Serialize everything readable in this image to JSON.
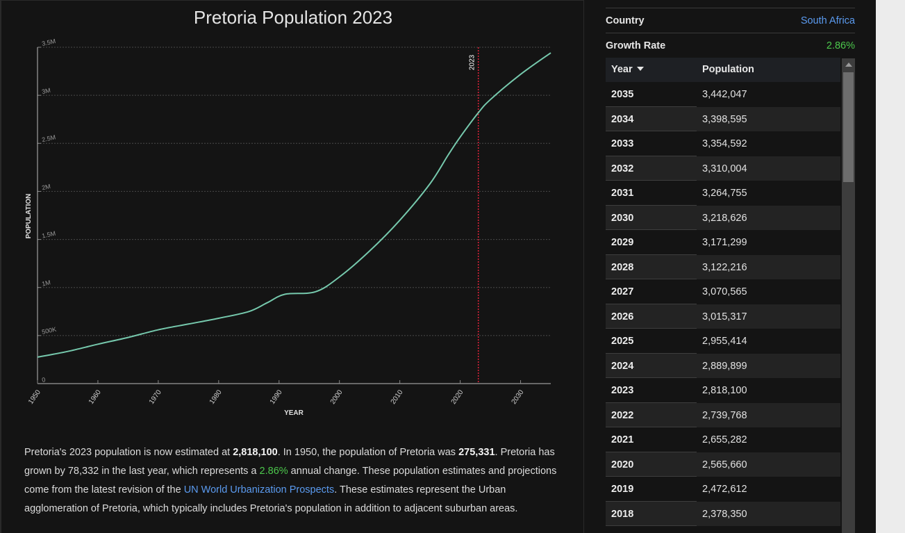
{
  "chart_title": "Pretoria Population 2023",
  "chart_data": {
    "type": "line",
    "title": "Pretoria Population 2023",
    "xlabel": "YEAR",
    "ylabel": "POPULATION",
    "xlim": [
      1950,
      2035
    ],
    "ylim": [
      0,
      3500000
    ],
    "x_ticks": [
      "1950",
      "1960",
      "1970",
      "1980",
      "1990",
      "2000",
      "2010",
      "2020",
      "2030"
    ],
    "y_ticks": [
      "0",
      "500K",
      "1M",
      "1.5M",
      "2M",
      "2.5M",
      "3M",
      "3.5M"
    ],
    "marker": {
      "year": 2023,
      "label": "2023"
    },
    "grid": true,
    "series": [
      {
        "x": [
          1950,
          1955,
          1960,
          1965,
          1970,
          1975,
          1980,
          1985,
          1988,
          1991,
          1996,
          2000,
          2005,
          2010,
          2015,
          2018,
          2020,
          2023,
          2025,
          2030,
          2035
        ],
        "y": [
          275331,
          335000,
          410000,
          480000,
          560000,
          620000,
          680000,
          750000,
          840000,
          930000,
          955000,
          1110000,
          1380000,
          1700000,
          2080000,
          2378350,
          2565660,
          2818100,
          2955414,
          3218626,
          3442047
        ]
      }
    ]
  },
  "description": {
    "p1": "Pretoria's 2023 population is now estimated at ",
    "b1": "2,818,100",
    "p2": ". In 1950, the population of Pretoria was ",
    "b2": "275,331",
    "p3": ". Pretoria has grown by 78,332 in the last year, which represents a ",
    "g1": "2.86%",
    "p4": " annual change. These population estimates and projections come from the latest revision of the ",
    "link": "UN World Urbanization Prospects",
    "p5": ". These estimates represent the Urban agglomeration of Pretoria, which typically includes Pretoria's population in addition to adjacent suburban areas."
  },
  "info": {
    "country_label": "Country",
    "country_value": "South Africa",
    "growth_label": "Growth Rate",
    "growth_value": "2.86%"
  },
  "colors": {
    "line": "#76c9ad",
    "marker": "#e0223a",
    "link": "#5b9bf0",
    "green": "#4cc84c"
  },
  "table": {
    "col_year": "Year",
    "col_population": "Population",
    "rows": [
      {
        "year": "2035",
        "population": "3,442,047"
      },
      {
        "year": "2034",
        "population": "3,398,595"
      },
      {
        "year": "2033",
        "population": "3,354,592"
      },
      {
        "year": "2032",
        "population": "3,310,004"
      },
      {
        "year": "2031",
        "population": "3,264,755"
      },
      {
        "year": "2030",
        "population": "3,218,626"
      },
      {
        "year": "2029",
        "population": "3,171,299"
      },
      {
        "year": "2028",
        "population": "3,122,216"
      },
      {
        "year": "2027",
        "population": "3,070,565"
      },
      {
        "year": "2026",
        "population": "3,015,317"
      },
      {
        "year": "2025",
        "population": "2,955,414"
      },
      {
        "year": "2024",
        "population": "2,889,899"
      },
      {
        "year": "2023",
        "population": "2,818,100"
      },
      {
        "year": "2022",
        "population": "2,739,768"
      },
      {
        "year": "2021",
        "population": "2,655,282"
      },
      {
        "year": "2020",
        "population": "2,565,660"
      },
      {
        "year": "2019",
        "population": "2,472,612"
      },
      {
        "year": "2018",
        "population": "2,378,350"
      }
    ]
  }
}
